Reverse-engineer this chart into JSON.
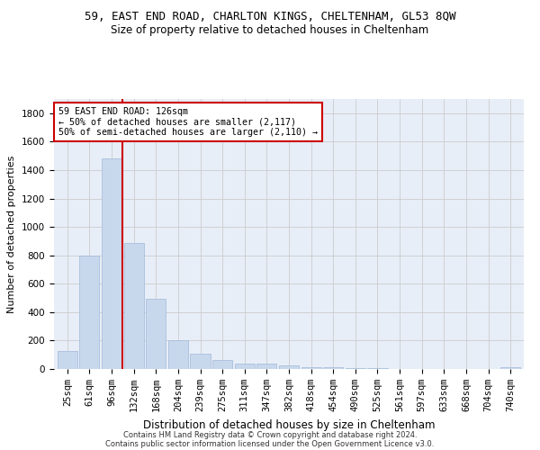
{
  "title1": "59, EAST END ROAD, CHARLTON KINGS, CHELTENHAM, GL53 8QW",
  "title2": "Size of property relative to detached houses in Cheltenham",
  "xlabel": "Distribution of detached houses by size in Cheltenham",
  "ylabel": "Number of detached properties",
  "footer1": "Contains HM Land Registry data © Crown copyright and database right 2024.",
  "footer2": "Contains public sector information licensed under the Open Government Licence v3.0.",
  "annotation_line1": "59 EAST END ROAD: 126sqm",
  "annotation_line2": "← 50% of detached houses are smaller (2,117)",
  "annotation_line3": "50% of semi-detached houses are larger (2,110) →",
  "bar_color": "#c8d8ec",
  "bar_edge_color": "#a0b8d8",
  "vline_color": "#cc0000",
  "background_color": "#e8eef8",
  "categories": [
    "25sqm",
    "61sqm",
    "96sqm",
    "132sqm",
    "168sqm",
    "204sqm",
    "239sqm",
    "275sqm",
    "311sqm",
    "347sqm",
    "382sqm",
    "418sqm",
    "454sqm",
    "490sqm",
    "525sqm",
    "561sqm",
    "597sqm",
    "633sqm",
    "668sqm",
    "704sqm",
    "740sqm"
  ],
  "values": [
    125,
    795,
    1480,
    885,
    495,
    205,
    105,
    65,
    40,
    35,
    25,
    15,
    10,
    5,
    5,
    3,
    2,
    2,
    2,
    2,
    15
  ],
  "ylim": [
    0,
    1900
  ],
  "yticks": [
    0,
    200,
    400,
    600,
    800,
    1000,
    1200,
    1400,
    1600,
    1800
  ],
  "vline_bar_index": 2,
  "grid_color": "#cccccc",
  "title1_fontsize": 9,
  "title2_fontsize": 8.5,
  "ylabel_fontsize": 8,
  "xlabel_fontsize": 8.5,
  "tick_fontsize": 7.5,
  "footer_fontsize": 6.0
}
